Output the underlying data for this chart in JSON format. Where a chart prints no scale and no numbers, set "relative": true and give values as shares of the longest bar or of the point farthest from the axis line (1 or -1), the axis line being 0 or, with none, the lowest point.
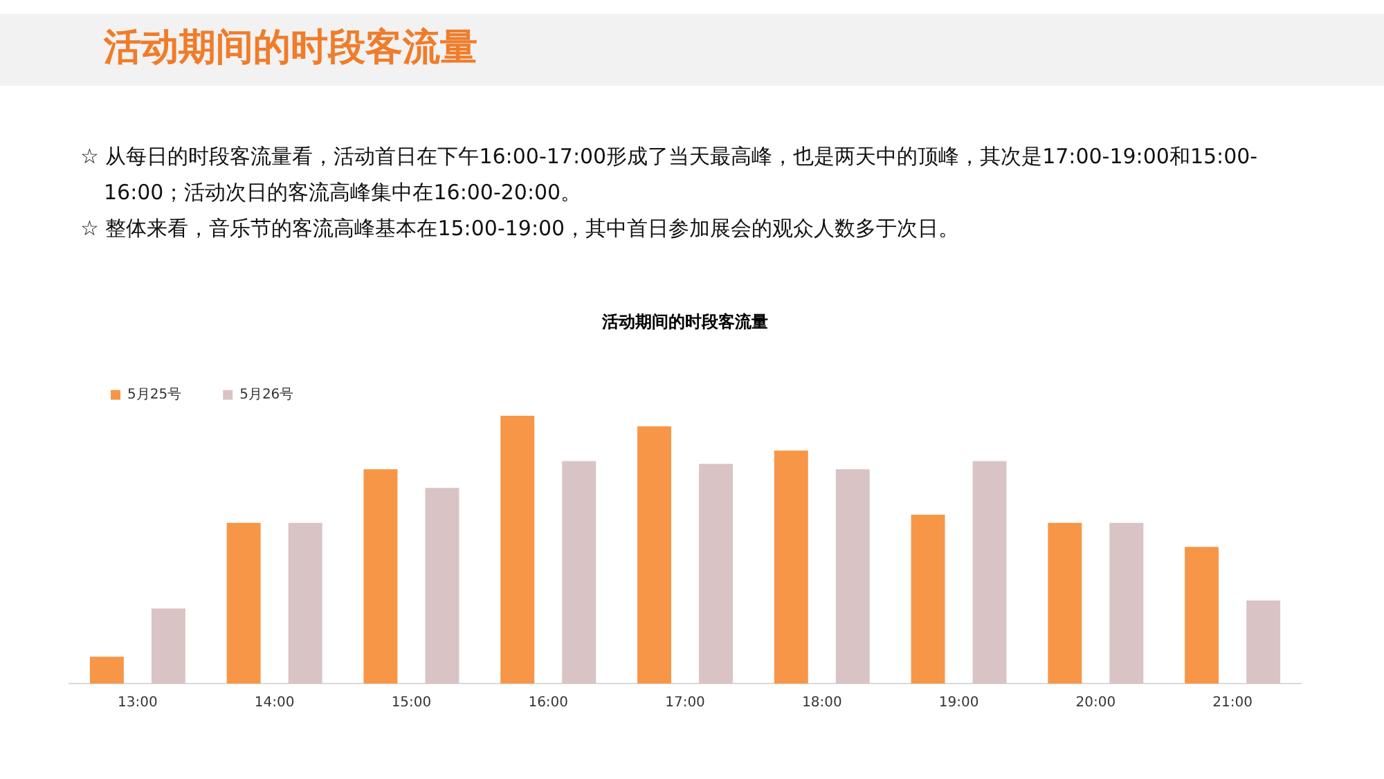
{
  "chart_data": {
    "type": "bar",
    "title": "活动期间的时段客流量",
    "subtitle": "活动期间的时段客流量",
    "annotations": [
      "☆ 从每日的时段客流量看，活动首日在下午16:00-17:00形成了当天最高峰，也是两天中的顶峰，其次是17:00-19:00和15:00-16:00；活动次日的客流高峰集中在16:00-20:00。",
      "☆ 整体来看，音乐节的客流高峰基本在15:00-19:00，其中首日参加展会的观众人数多于次日。"
    ],
    "categories": [
      "13:00",
      "14:00",
      "15:00",
      "16:00",
      "17:00",
      "18:00",
      "19:00",
      "20:00",
      "21:00"
    ],
    "relative": true,
    "grid": false,
    "legend": "top left",
    "series": [
      {
        "name": "5月25号",
        "color": "#f79646",
        "values": [
          0.1,
          0.6,
          0.8,
          1,
          0.96,
          0.87,
          0.63,
          0.6,
          0.51
        ]
      },
      {
        "name": "5月26号",
        "color": "#d9c3c5",
        "values": [
          0.28,
          0.6,
          0.73,
          0.83,
          0.82,
          0.8,
          0.83,
          0.6,
          0.31
        ]
      }
    ]
  }
}
